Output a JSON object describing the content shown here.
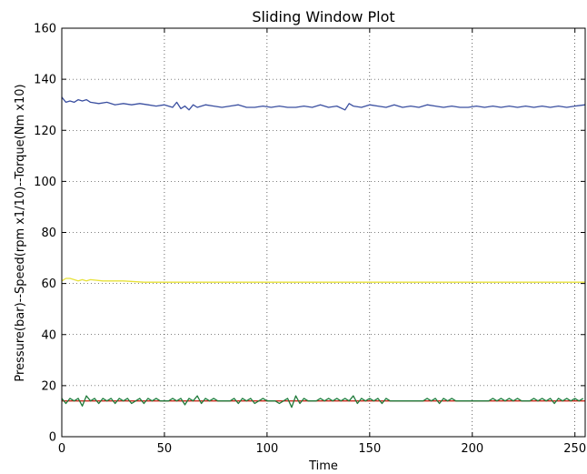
{
  "chart_data": {
    "type": "line",
    "title": "Sliding Window Plot",
    "xlabel": "Time",
    "ylabel": "Pressure(bar)--Speed(rpm x1/10)--Torque(Nm x10)",
    "xlim": [
      0,
      255
    ],
    "ylim": [
      0,
      160
    ],
    "xticks": [
      0,
      50,
      100,
      150,
      200,
      250
    ],
    "yticks": [
      0,
      20,
      40,
      60,
      80,
      100,
      120,
      140,
      160
    ],
    "grid": true,
    "series": [
      {
        "color": "#3a4fa0",
        "x": [
          0,
          2,
          4,
          6,
          8,
          10,
          12,
          14,
          18,
          22,
          26,
          30,
          34,
          38,
          42,
          46,
          50,
          54,
          56,
          58,
          60,
          62,
          64,
          66,
          70,
          74,
          78,
          82,
          86,
          90,
          94,
          98,
          102,
          106,
          110,
          114,
          118,
          122,
          126,
          130,
          134,
          138,
          140,
          142,
          146,
          150,
          154,
          158,
          162,
          166,
          170,
          174,
          178,
          182,
          186,
          190,
          194,
          198,
          202,
          206,
          210,
          214,
          218,
          222,
          226,
          230,
          234,
          238,
          242,
          246,
          250,
          255
        ],
        "values": [
          133,
          131,
          131.5,
          131,
          132,
          131.5,
          132,
          131,
          130.5,
          131,
          130,
          130.5,
          130,
          130.5,
          130,
          129.5,
          130,
          129,
          131,
          128.5,
          129.5,
          128,
          130,
          129,
          130,
          129.5,
          129,
          129.5,
          130,
          129,
          129,
          129.5,
          129,
          129.5,
          129,
          129,
          129.5,
          129,
          130,
          129,
          129.5,
          128,
          130.5,
          129.5,
          129,
          130,
          129.5,
          129,
          130,
          129,
          129.5,
          129,
          130,
          129.5,
          129,
          129.5,
          129,
          129,
          129.5,
          129,
          129.5,
          129,
          129.5,
          129,
          129.5,
          129,
          129.5,
          129,
          129.5,
          129,
          129.5,
          130
        ]
      },
      {
        "color": "#e8e23a",
        "x": [
          0,
          2,
          4,
          6,
          8,
          10,
          12,
          14,
          20,
          30,
          40,
          50,
          60,
          70,
          80,
          90,
          100,
          110,
          120,
          130,
          140,
          150,
          160,
          170,
          180,
          190,
          200,
          210,
          220,
          230,
          240,
          250,
          255
        ],
        "values": [
          61,
          62,
          62,
          61.5,
          61,
          61.5,
          61,
          61.5,
          61,
          61,
          60.5,
          60.5,
          60.5,
          60.5,
          60.5,
          60.5,
          60.5,
          60.5,
          60.5,
          60.5,
          60.5,
          60.5,
          60.5,
          60.5,
          60.5,
          60.5,
          60.5,
          60.5,
          60.5,
          60.5,
          60.5,
          60.5,
          60.5
        ]
      },
      {
        "color": "#cc2a1e",
        "x": [
          0,
          255
        ],
        "values": [
          14,
          14
        ]
      },
      {
        "color": "#1f7a3a",
        "x": [
          0,
          2,
          4,
          6,
          8,
          10,
          12,
          14,
          16,
          18,
          20,
          22,
          24,
          26,
          28,
          30,
          32,
          34,
          36,
          38,
          40,
          42,
          44,
          46,
          48,
          50,
          52,
          54,
          56,
          58,
          60,
          62,
          64,
          66,
          68,
          70,
          72,
          74,
          76,
          78,
          80,
          82,
          84,
          86,
          88,
          90,
          92,
          94,
          96,
          98,
          100,
          102,
          104,
          106,
          108,
          110,
          112,
          114,
          116,
          118,
          120,
          122,
          124,
          126,
          128,
          130,
          132,
          134,
          136,
          138,
          140,
          142,
          144,
          146,
          148,
          150,
          152,
          154,
          156,
          158,
          160,
          162,
          164,
          166,
          168,
          170,
          172,
          174,
          176,
          178,
          180,
          182,
          184,
          186,
          188,
          190,
          192,
          194,
          196,
          198,
          200,
          202,
          204,
          206,
          208,
          210,
          212,
          214,
          216,
          218,
          220,
          222,
          224,
          226,
          228,
          230,
          232,
          234,
          236,
          238,
          240,
          242,
          244,
          246,
          248,
          250,
          252,
          254
        ],
        "values": [
          15,
          13,
          15,
          14,
          15,
          12,
          16,
          14,
          15,
          13,
          15,
          14,
          15,
          13,
          15,
          14,
          15,
          13,
          14,
          15,
          13,
          15,
          14,
          15,
          14,
          14,
          14,
          15,
          14,
          15,
          12.5,
          15,
          14,
          16,
          13,
          15,
          14,
          15,
          14,
          14,
          14,
          14,
          15,
          13,
          15,
          14,
          15,
          13,
          14,
          15,
          14,
          14,
          14,
          13,
          14,
          15,
          11.5,
          16,
          13,
          15,
          14,
          14,
          14,
          15,
          14,
          15,
          14,
          15,
          14,
          15,
          14,
          16,
          13,
          15,
          14,
          15,
          14,
          15,
          13,
          15,
          14,
          14,
          14,
          14,
          14,
          14,
          14,
          14,
          14,
          15,
          14,
          15,
          13,
          15,
          14,
          15,
          14,
          14,
          14,
          14,
          14,
          14,
          14,
          14,
          14,
          15,
          14,
          15,
          14,
          15,
          14,
          15,
          14,
          14,
          14,
          15,
          14,
          15,
          14,
          15,
          13,
          15,
          14,
          15,
          14,
          15,
          14,
          15
        ]
      }
    ]
  }
}
